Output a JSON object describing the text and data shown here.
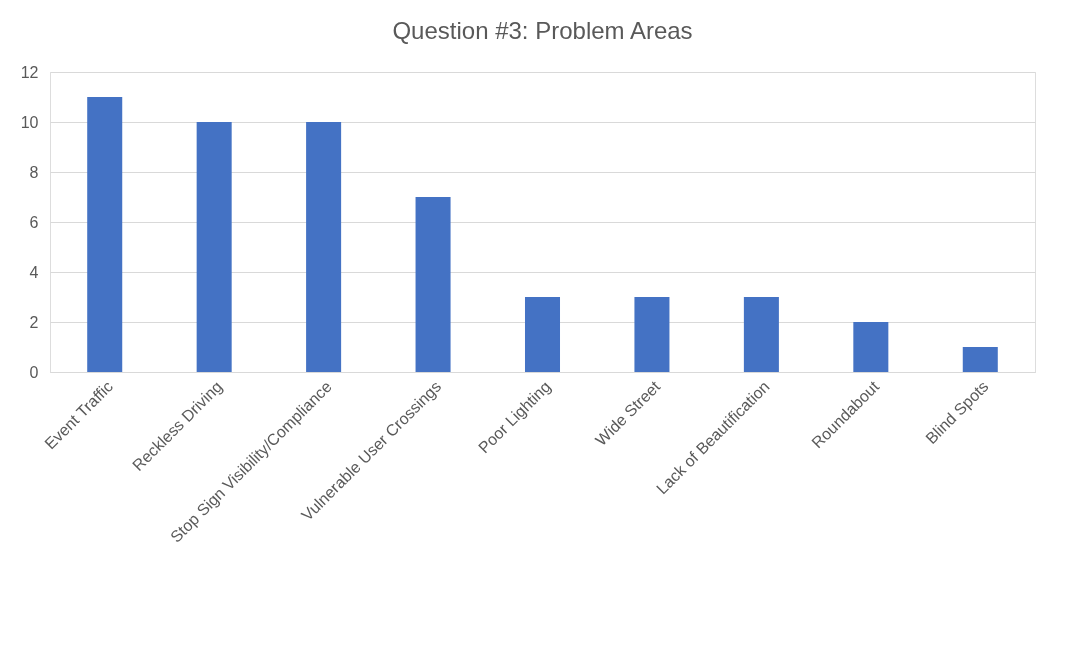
{
  "chart_data": {
    "type": "bar",
    "title": "Question #3: Problem Areas",
    "categories": [
      "Event Traffic",
      "Reckless Driving",
      "Stop Sign Visibility/Compliance",
      "Vulnerable User Crossings",
      "Poor Lighting",
      "Wide Street",
      "Lack of Beautification",
      "Roundabout",
      "Blind Spots"
    ],
    "values": [
      11,
      10,
      10,
      7,
      3,
      3,
      3,
      2,
      1
    ],
    "color": "#4472c4",
    "ylim": [
      0,
      12
    ],
    "yticks": [
      0,
      2,
      4,
      6,
      8,
      10,
      12
    ],
    "grid": "y"
  }
}
